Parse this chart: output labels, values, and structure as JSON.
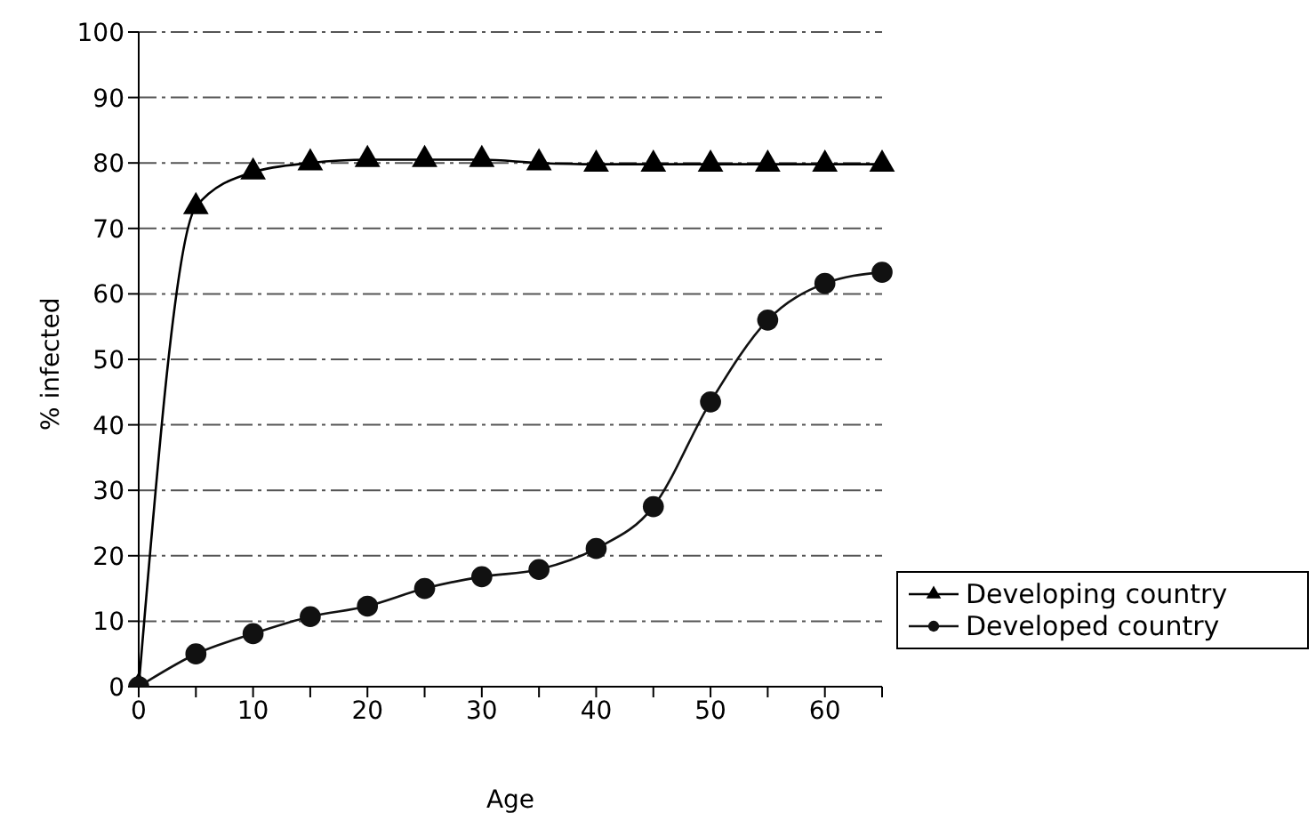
{
  "chart_data": {
    "type": "line",
    "xlabel": "Age",
    "ylabel": "% infected",
    "categories": [
      "0",
      null,
      "10",
      null,
      "20",
      null,
      "30",
      null,
      "40",
      null,
      "50",
      null,
      "60",
      null
    ],
    "series": [
      {
        "name": "Developing country",
        "color": "#000000",
        "marker": "triangle",
        "values": [
          0,
          73.3,
          78.6,
          80,
          80.5,
          80.5,
          80.5,
          80,
          79.8,
          79.8,
          79.8,
          79.8,
          79.8,
          79.8
        ]
      },
      {
        "name": "Developed country",
        "color": "#111111",
        "marker": "circle",
        "values": [
          0,
          5,
          8.1,
          10.7,
          12.3,
          15,
          16.8,
          17.9,
          21.1,
          27.5,
          43.5,
          56,
          61.6,
          63.3
        ]
      }
    ],
    "ylim": [
      0,
      100
    ],
    "yticks": [
      0,
      10,
      20,
      30,
      40,
      50,
      60,
      70,
      80,
      90,
      100
    ],
    "grid": "y",
    "legend": "right",
    "line_style": "solid"
  }
}
